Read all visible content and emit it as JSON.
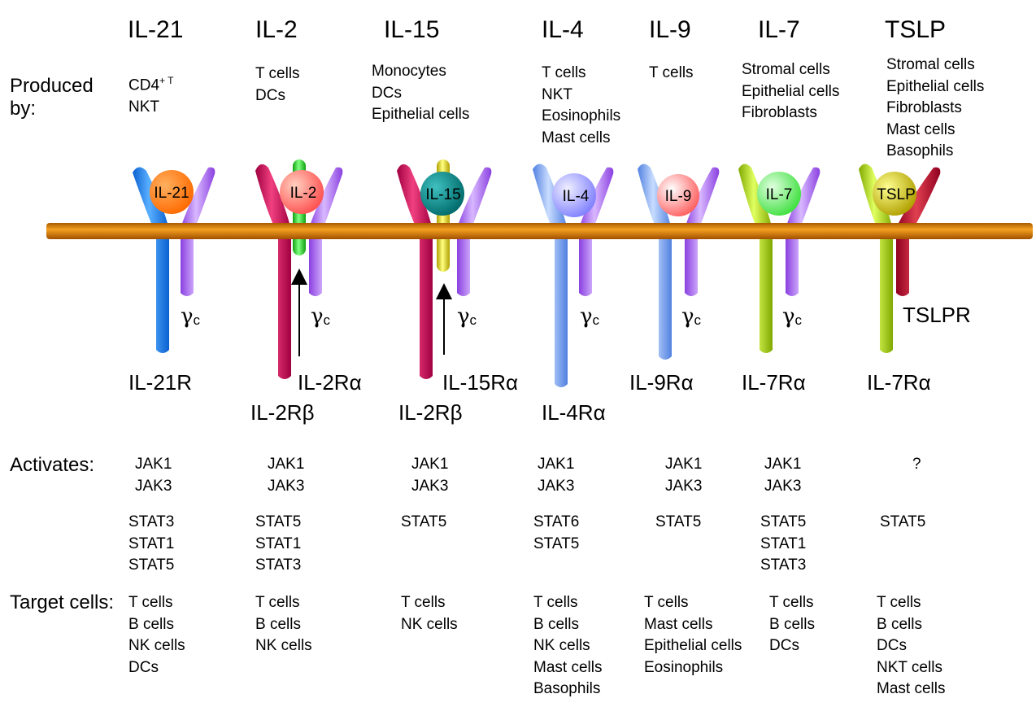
{
  "labels": {
    "produced_by": "Produced\nby:",
    "activates": "Activates:",
    "target_cells": "Target cells:",
    "gamma_c": "γ",
    "gamma_c_sub": "c"
  },
  "cytokines": [
    {
      "name": "IL-21",
      "produced_by": [
        "CD4",
        "NKT"
      ],
      "produced_by_sup": "+ T",
      "ligand": "IL-21",
      "ligand_color": "#ff7d00",
      "receptors": [
        "IL-21R"
      ],
      "jak": [
        "JAK1",
        "JAK3"
      ],
      "stat": [
        "STAT3",
        "STAT1",
        "STAT5"
      ],
      "targets": [
        "T cells",
        "B cells",
        "NK cells",
        "DCs"
      ]
    },
    {
      "name": "IL-2",
      "produced_by": [
        "T cells",
        "DCs"
      ],
      "ligand": "IL-2",
      "ligand_color": "#ff6a6a",
      "receptors": [
        "IL-2Rα",
        "IL-2Rβ"
      ],
      "jak": [
        "JAK1",
        "JAK3"
      ],
      "stat": [
        "STAT5",
        "STAT1",
        "STAT3"
      ],
      "targets": [
        "T cells",
        "B cells",
        "NK cells"
      ]
    },
    {
      "name": "IL-15",
      "produced_by": [
        "Monocytes",
        "DCs",
        "Epithelial cells"
      ],
      "ligand": "IL-15",
      "ligand_color": "#008c8c",
      "receptors": [
        "IL-15Rα",
        "IL-2Rβ"
      ],
      "jak": [
        "JAK1",
        "JAK3"
      ],
      "stat": [
        "STAT5"
      ],
      "targets": [
        "T cells",
        "NK cells"
      ]
    },
    {
      "name": "IL-4",
      "produced_by": [
        "T cells",
        "NKT",
        "Eosinophils",
        "Mast cells"
      ],
      "ligand": "IL-4",
      "ligand_color": "#9a9aff",
      "receptors": [
        "IL-4Rα"
      ],
      "jak": [
        "JAK1",
        "JAK3"
      ],
      "stat": [
        "STAT6",
        "STAT5"
      ],
      "targets": [
        "T cells",
        "B cells",
        "NK cells",
        "Mast cells",
        "Basophils"
      ]
    },
    {
      "name": "IL-9",
      "produced_by": [
        "T cells"
      ],
      "ligand": "IL-9",
      "ligand_color": "#ff8a8a",
      "receptors": [
        "IL-9Rα"
      ],
      "jak": [
        "JAK1",
        "JAK3"
      ],
      "stat": [
        "STAT5"
      ],
      "targets": [
        "T cells",
        "Mast cells",
        "Epithelial cells",
        "Eosinophils"
      ]
    },
    {
      "name": "IL-7",
      "produced_by": [
        "Stromal cells",
        "Epithelial cells",
        "Fibroblasts"
      ],
      "ligand": "IL-7",
      "ligand_color": "#66ee66",
      "receptors": [
        "IL-7Rα"
      ],
      "jak": [
        "JAK1",
        "JAK3"
      ],
      "stat": [
        "STAT5",
        "STAT1",
        "STAT3"
      ],
      "targets": [
        "T cells",
        "B cells",
        "DCs"
      ]
    },
    {
      "name": "TSLP",
      "produced_by": [
        "Stromal cells",
        "Epithelial cells",
        "Fibroblasts",
        "Mast cells",
        "Basophils"
      ],
      "ligand": "TSLP",
      "ligand_color": "#d8d000",
      "receptors": [
        "IL-7Rα",
        "TSLPR"
      ],
      "jak": [
        "?"
      ],
      "stat": [
        "STAT5"
      ],
      "targets": [
        "T cells",
        "B cells",
        "DCs",
        "NKT cells",
        "Mast cells"
      ]
    }
  ],
  "colors": {
    "membrane": "#d98a00",
    "il21r": "#1e88ff",
    "gamma_c": "#b070ff",
    "il2rb": "#d0105a",
    "il2ra": "#22cc22",
    "il15ra": "#e0d000",
    "il4ra": "#88b0ff",
    "il7ra": "#a8d400",
    "tslpr": "#c01030"
  }
}
